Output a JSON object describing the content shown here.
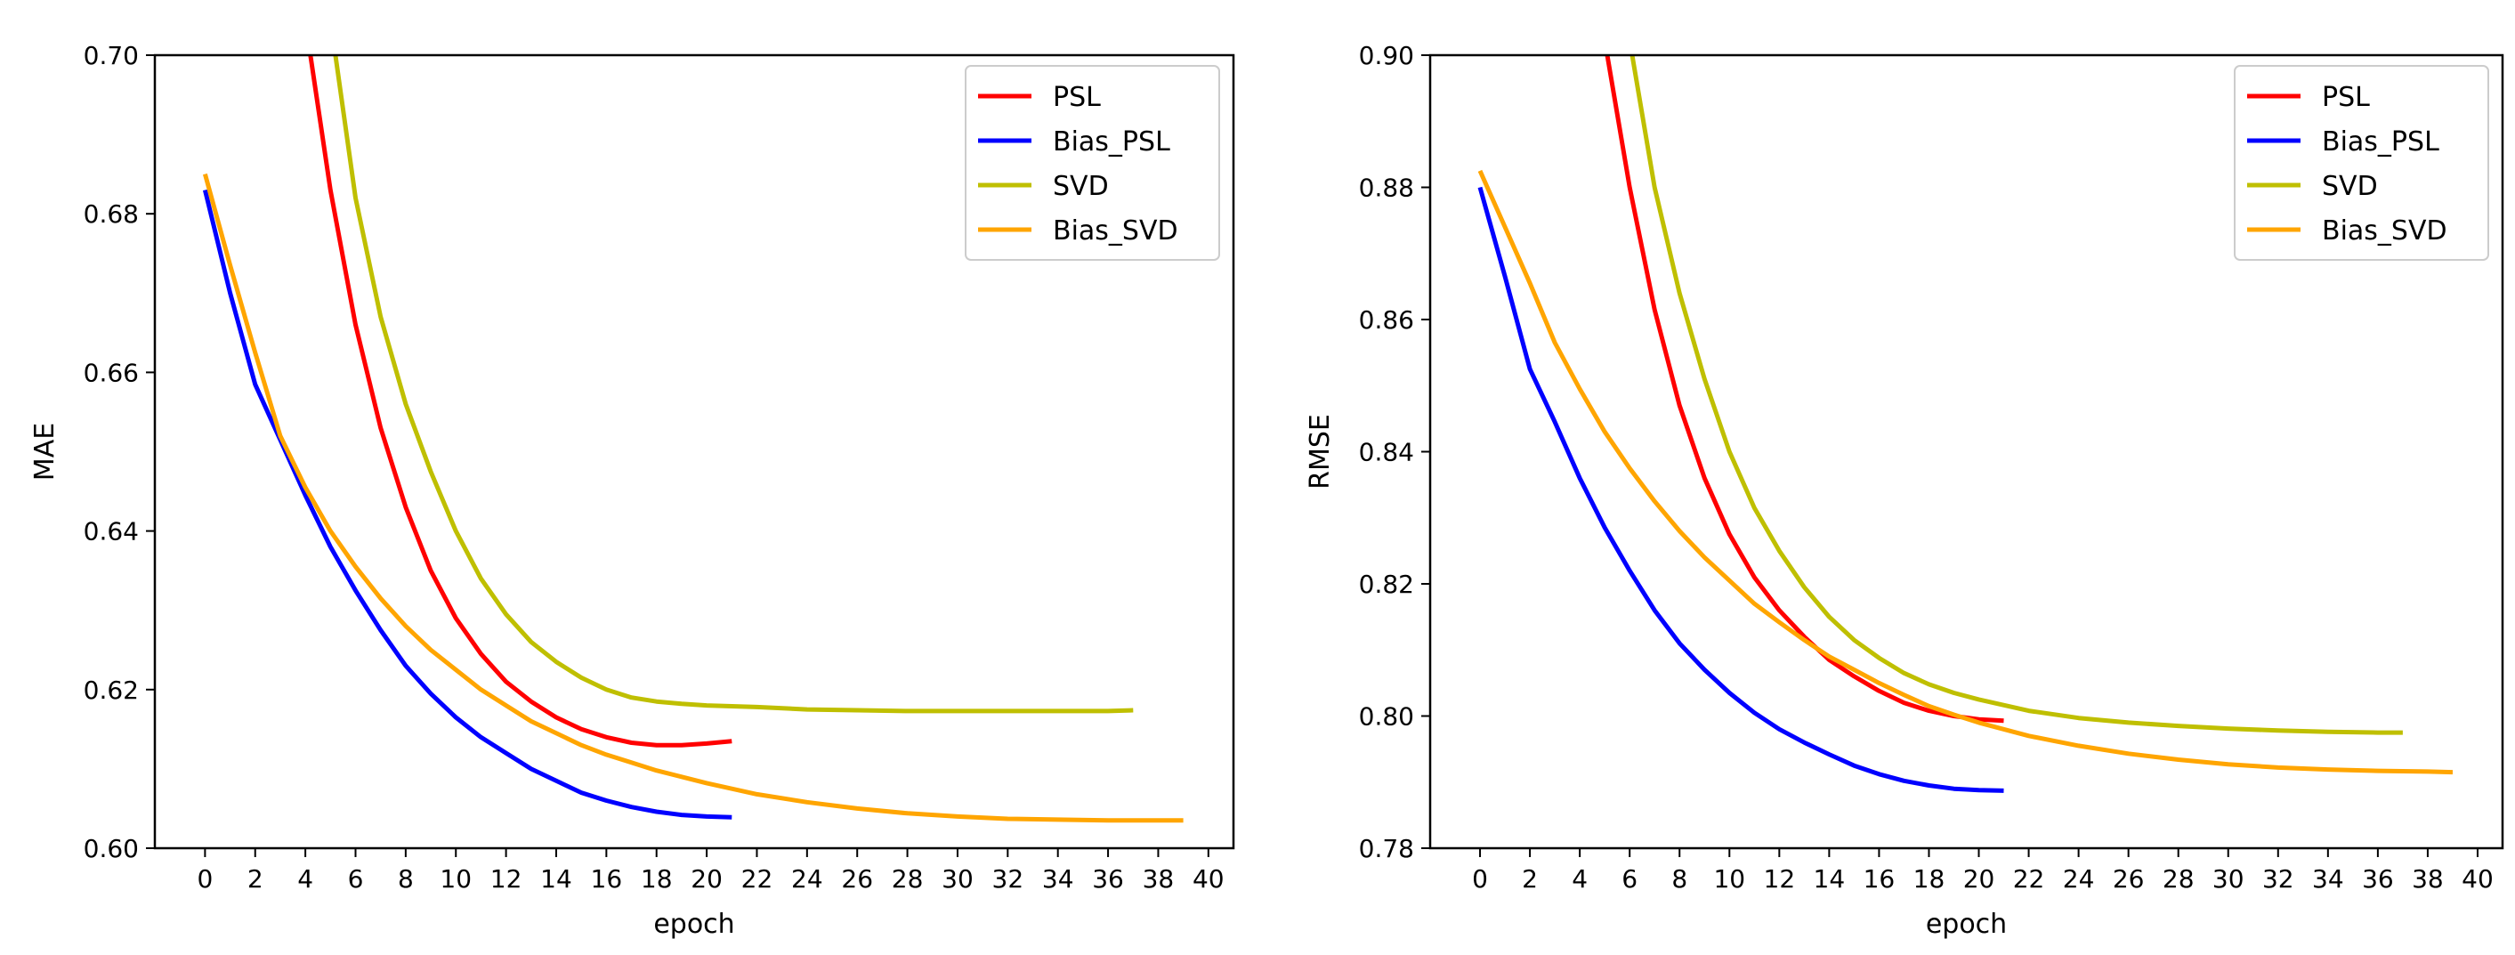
{
  "chart_data": [
    {
      "type": "line",
      "xlabel": "epoch",
      "ylabel": "MAE",
      "xlim": [
        -2,
        41
      ],
      "ylim": [
        0.6,
        0.7
      ],
      "xticks": [
        0,
        2,
        4,
        6,
        8,
        10,
        12,
        14,
        16,
        18,
        20,
        22,
        24,
        26,
        28,
        30,
        32,
        34,
        36,
        38,
        40
      ],
      "yticks": [
        "0.60",
        "0.62",
        "0.64",
        "0.66",
        "0.68",
        "0.70"
      ],
      "grid": false,
      "legend_position": "top-right",
      "series": [
        {
          "name": "PSL",
          "color": "#ff0000",
          "x": [
            4.2,
            5,
            6,
            7,
            8,
            9,
            10,
            11,
            12,
            13,
            14,
            15,
            16,
            17,
            18,
            19,
            20,
            21
          ],
          "y": [
            0.7,
            0.683,
            0.666,
            0.653,
            0.643,
            0.635,
            0.629,
            0.6245,
            0.621,
            0.6185,
            0.6165,
            0.615,
            0.614,
            0.6133,
            0.613,
            0.613,
            0.6132,
            0.6135
          ]
        },
        {
          "name": "Bias_PSL",
          "color": "#0000ff",
          "x": [
            0,
            1,
            2,
            3,
            4,
            5,
            6,
            7,
            8,
            9,
            10,
            11,
            12,
            13,
            14,
            15,
            16,
            17,
            18,
            19,
            20,
            21
          ],
          "y": [
            0.683,
            0.67,
            0.6585,
            0.6515,
            0.6445,
            0.638,
            0.6325,
            0.6275,
            0.623,
            0.6195,
            0.6165,
            0.614,
            0.612,
            0.61,
            0.6085,
            0.607,
            0.606,
            0.6052,
            0.6046,
            0.6042,
            0.604,
            0.6039
          ]
        },
        {
          "name": "SVD",
          "color": "#bfbf00",
          "x": [
            5.2,
            6,
            7,
            8,
            9,
            10,
            11,
            12,
            13,
            14,
            15,
            16,
            17,
            18,
            19,
            20,
            22,
            24,
            26,
            28,
            30,
            32,
            34,
            36,
            37
          ],
          "y": [
            0.7,
            0.682,
            0.667,
            0.656,
            0.6475,
            0.64,
            0.634,
            0.6295,
            0.626,
            0.6235,
            0.6215,
            0.62,
            0.619,
            0.6185,
            0.6182,
            0.618,
            0.6178,
            0.6175,
            0.6174,
            0.6173,
            0.6173,
            0.6173,
            0.6173,
            0.6173,
            0.6174
          ]
        },
        {
          "name": "Bias_SVD",
          "color": "#ffa500",
          "x": [
            0,
            1,
            2,
            3,
            4,
            5,
            6,
            7,
            8,
            9,
            10,
            11,
            12,
            13,
            14,
            15,
            16,
            17,
            18,
            19,
            20,
            22,
            24,
            26,
            28,
            30,
            32,
            34,
            36,
            38,
            39
          ],
          "y": [
            0.685,
            0.6735,
            0.6625,
            0.652,
            0.6455,
            0.64,
            0.6355,
            0.6315,
            0.628,
            0.625,
            0.6225,
            0.62,
            0.618,
            0.616,
            0.6145,
            0.613,
            0.6118,
            0.6108,
            0.6098,
            0.609,
            0.6082,
            0.6068,
            0.6058,
            0.605,
            0.6044,
            0.604,
            0.6037,
            0.6036,
            0.6035,
            0.6035,
            0.6035
          ]
        }
      ]
    },
    {
      "type": "line",
      "xlabel": "epoch",
      "ylabel": "RMSE",
      "xlim": [
        -2,
        41
      ],
      "ylim": [
        0.78,
        0.9
      ],
      "xticks": [
        0,
        2,
        4,
        6,
        8,
        10,
        12,
        14,
        16,
        18,
        20,
        22,
        24,
        26,
        28,
        30,
        32,
        34,
        36,
        38,
        40
      ],
      "yticks": [
        "0.78",
        "0.80",
        "0.82",
        "0.84",
        "0.86",
        "0.88",
        "0.90"
      ],
      "grid": false,
      "legend_position": "top-right",
      "series": [
        {
          "name": "PSL",
          "color": "#ff0000",
          "x": [
            5.1,
            6,
            7,
            8,
            9,
            10,
            11,
            12,
            13,
            14,
            15,
            16,
            17,
            18,
            19,
            20,
            21
          ],
          "y": [
            0.9,
            0.88,
            0.8615,
            0.847,
            0.836,
            0.8275,
            0.821,
            0.816,
            0.812,
            0.8085,
            0.806,
            0.8038,
            0.802,
            0.8008,
            0.8,
            0.7995,
            0.7993
          ]
        },
        {
          "name": "Bias_PSL",
          "color": "#0000ff",
          "x": [
            0,
            1,
            2,
            3,
            4,
            5,
            6,
            7,
            8,
            9,
            10,
            11,
            12,
            13,
            14,
            15,
            16,
            17,
            18,
            19,
            20,
            21
          ],
          "y": [
            0.88,
            0.8665,
            0.8525,
            0.8445,
            0.836,
            0.8285,
            0.822,
            0.816,
            0.811,
            0.807,
            0.8035,
            0.8005,
            0.798,
            0.796,
            0.7942,
            0.7925,
            0.7912,
            0.7902,
            0.7895,
            0.789,
            0.7888,
            0.7887
          ]
        },
        {
          "name": "SVD",
          "color": "#bfbf00",
          "x": [
            6.1,
            7,
            8,
            9,
            10,
            11,
            12,
            13,
            14,
            15,
            16,
            17,
            18,
            19,
            20,
            22,
            24,
            26,
            28,
            30,
            32,
            34,
            36,
            37
          ],
          "y": [
            0.9,
            0.88,
            0.864,
            0.851,
            0.84,
            0.8315,
            0.825,
            0.8195,
            0.815,
            0.8115,
            0.8088,
            0.8065,
            0.8048,
            0.8035,
            0.8025,
            0.8008,
            0.7997,
            0.799,
            0.7985,
            0.7981,
            0.7978,
            0.7976,
            0.7975,
            0.7975
          ]
        },
        {
          "name": "Bias_SVD",
          "color": "#ffa500",
          "x": [
            0,
            1,
            2,
            3,
            4,
            5,
            6,
            7,
            8,
            9,
            10,
            11,
            12,
            13,
            14,
            15,
            16,
            17,
            18,
            19,
            20,
            22,
            24,
            26,
            28,
            30,
            32,
            34,
            36,
            38,
            39
          ],
          "y": [
            0.8825,
            0.874,
            0.8655,
            0.8565,
            0.8495,
            0.843,
            0.8375,
            0.8325,
            0.828,
            0.824,
            0.8205,
            0.817,
            0.8142,
            0.8115,
            0.809,
            0.807,
            0.805,
            0.8032,
            0.8015,
            0.8002,
            0.799,
            0.797,
            0.7955,
            0.7943,
            0.7934,
            0.7927,
            0.7922,
            0.7919,
            0.7917,
            0.7916,
            0.7915
          ]
        }
      ]
    }
  ]
}
